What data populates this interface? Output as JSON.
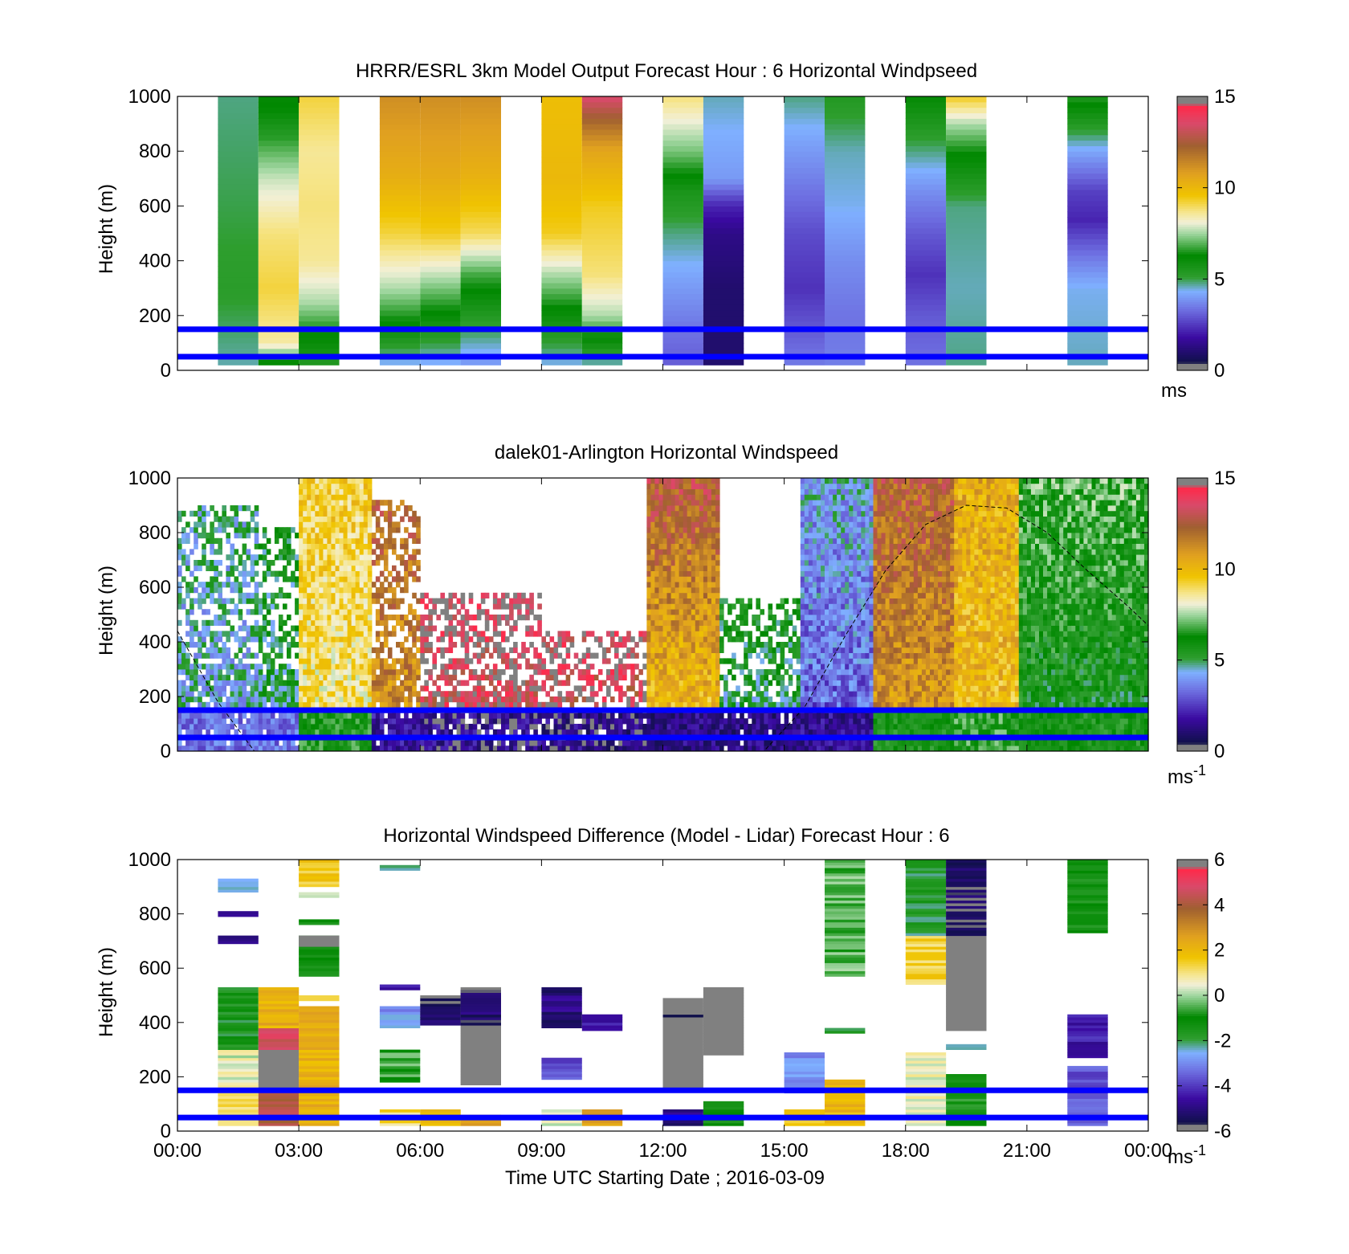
{
  "chart_data": [
    {
      "type": "heatmap",
      "title": "HRRR/ESRL 3km Model Output   Forecast Hour : 6 Horizontal Windpseed",
      "ylabel": "Height (m)",
      "ylim": [
        0,
        1000
      ],
      "yticks": [
        "0",
        "200",
        "400",
        "600",
        "800",
        "1000"
      ],
      "xlim": [
        0,
        24
      ],
      "xticks": [],
      "colorbar": {
        "min": 0,
        "max": 15,
        "ticks": [
          "0",
          "5",
          "10",
          "15"
        ],
        "unit": "ms",
        "unit_sup": ""
      },
      "reference_lines_m": [
        50,
        150
      ],
      "reference_line_color": "#0000ff",
      "columns": [
        {
          "t": 1.5,
          "profile": [
            [
              0,
              4.6
            ],
            [
              300,
              5.2
            ],
            [
              600,
              5.0
            ],
            [
              1000,
              4.8
            ]
          ]
        },
        {
          "t": 2.5,
          "profile": [
            [
              0,
              5.2
            ],
            [
              100,
              8.5
            ],
            [
              300,
              9.2
            ],
            [
              500,
              8.8
            ],
            [
              700,
              7.8
            ],
            [
              850,
              6.6
            ],
            [
              1000,
              6.2
            ]
          ]
        },
        {
          "t": 3.5,
          "profile": [
            [
              0,
              5.2
            ],
            [
              150,
              6.5
            ],
            [
              250,
              7.6
            ],
            [
              400,
              8.6
            ],
            [
              600,
              8.8
            ],
            [
              800,
              8.6
            ],
            [
              1000,
              9.2
            ]
          ]
        },
        {
          "t": 5.5,
          "profile": [
            [
              0,
              4.0
            ],
            [
              150,
              6.0
            ],
            [
              300,
              7.6
            ],
            [
              500,
              9.2
            ],
            [
              700,
              10.3
            ],
            [
              1000,
              11.2
            ]
          ]
        },
        {
          "t": 6.5,
          "profile": [
            [
              0,
              4.0
            ],
            [
              150,
              5.6
            ],
            [
              300,
              7.2
            ],
            [
              500,
              9.4
            ],
            [
              700,
              10.4
            ],
            [
              1000,
              11.2
            ]
          ]
        },
        {
          "t": 7.5,
          "profile": [
            [
              0,
              3.8
            ],
            [
              200,
              5.4
            ],
            [
              350,
              6.8
            ],
            [
              500,
              9.0
            ],
            [
              700,
              10.2
            ],
            [
              1000,
              11.2
            ]
          ]
        },
        {
          "t": 9.5,
          "profile": [
            [
              0,
              4.2
            ],
            [
              200,
              6.0
            ],
            [
              350,
              7.6
            ],
            [
              500,
              9.4
            ],
            [
              700,
              10.0
            ],
            [
              1000,
              9.8
            ]
          ]
        },
        {
          "t": 10.5,
          "profile": [
            [
              0,
              4.2
            ],
            [
              200,
              7.6
            ],
            [
              350,
              8.8
            ],
            [
              600,
              9.4
            ],
            [
              800,
              10.6
            ],
            [
              900,
              12.0
            ],
            [
              1000,
              13.6
            ]
          ]
        },
        {
          "t": 12.5,
          "profile": [
            [
              0,
              3.0
            ],
            [
              150,
              3.4
            ],
            [
              350,
              4.2
            ],
            [
              500,
              4.8
            ],
            [
              650,
              5.6
            ],
            [
              800,
              7.2
            ],
            [
              1000,
              8.8
            ]
          ]
        },
        {
          "t": 13.5,
          "profile": [
            [
              0,
              1.0
            ],
            [
              300,
              1.0
            ],
            [
              500,
              1.4
            ],
            [
              600,
              2.2
            ],
            [
              700,
              4.0
            ],
            [
              1000,
              4.6
            ]
          ]
        },
        {
          "t": 15.5,
          "profile": [
            [
              0,
              3.6
            ],
            [
              150,
              3.0
            ],
            [
              300,
              2.4
            ],
            [
              500,
              2.8
            ],
            [
              700,
              3.6
            ],
            [
              1000,
              4.8
            ]
          ]
        },
        {
          "t": 16.5,
          "profile": [
            [
              0,
              3.6
            ],
            [
              200,
              3.4
            ],
            [
              400,
              3.8
            ],
            [
              600,
              4.4
            ],
            [
              800,
              4.6
            ],
            [
              1000,
              5.4
            ]
          ]
        },
        {
          "t": 18.5,
          "profile": [
            [
              0,
              3.4
            ],
            [
              200,
              3.0
            ],
            [
              350,
              2.4
            ],
            [
              500,
              3.0
            ],
            [
              650,
              3.8
            ],
            [
              800,
              4.8
            ],
            [
              1000,
              6.2
            ]
          ]
        },
        {
          "t": 19.5,
          "profile": [
            [
              0,
              4.8
            ],
            [
              300,
              4.6
            ],
            [
              600,
              4.8
            ],
            [
              800,
              6.4
            ],
            [
              900,
              7.6
            ],
            [
              1000,
              9.4
            ]
          ]
        },
        {
          "t": 22.5,
          "profile": [
            [
              0,
              4.6
            ],
            [
              300,
              4.4
            ],
            [
              400,
              3.6
            ],
            [
              550,
              2.2
            ],
            [
              650,
              2.6
            ],
            [
              800,
              4.2
            ],
            [
              1000,
              6.6
            ]
          ]
        }
      ]
    },
    {
      "type": "heatmap",
      "title": "dalek01-Arlington  Horizontal Windspeed",
      "ylabel": "Height (m)",
      "ylim": [
        0,
        1000
      ],
      "yticks": [
        "0",
        "200",
        "400",
        "600",
        "800",
        "1000"
      ],
      "xlim": [
        0,
        24
      ],
      "xticks": [],
      "colorbar": {
        "min": 0,
        "max": 15,
        "ticks": [
          "0",
          "5",
          "10",
          "15"
        ],
        "unit": "ms",
        "unit_sup": "-1"
      },
      "reference_lines_m": [
        50,
        150
      ],
      "reference_line_color": "#0000ff",
      "boundary_layer_curve": [
        [
          0,
          440
        ],
        [
          1.0,
          180
        ],
        [
          1.9,
          0
        ],
        [
          14.5,
          0
        ],
        [
          15.5,
          160
        ],
        [
          16.5,
          420
        ],
        [
          17.5,
          660
        ],
        [
          18.5,
          830
        ],
        [
          19.5,
          900
        ],
        [
          20.5,
          890
        ],
        [
          21.5,
          800
        ],
        [
          22.5,
          660
        ],
        [
          23.5,
          530
        ],
        [
          24,
          460
        ]
      ],
      "segments": [
        {
          "t0": 0.0,
          "t1": 2.0,
          "zmax": 900,
          "base": 4.4,
          "low": 3.4,
          "up": 5.0
        },
        {
          "t0": 2.0,
          "t1": 3.0,
          "zmax": 820,
          "base": 4.8,
          "low": 3.4,
          "up": 6.2
        },
        {
          "t0": 3.0,
          "t1": 4.8,
          "zmax": 1000,
          "base": 8.6,
          "low": 6.4,
          "up": 9.8
        },
        {
          "t0": 4.8,
          "t1": 6.0,
          "zmax": 920,
          "base": 11.0,
          "low": 1.8,
          "up": 13.0
        },
        {
          "t0": 6.0,
          "t1": 9.0,
          "zmax": 580,
          "base": 13.2,
          "low": 1.6,
          "up": 15.0
        },
        {
          "t0": 9.0,
          "t1": 11.6,
          "zmax": 440,
          "base": 12.6,
          "low": 1.4,
          "up": 15.0
        },
        {
          "t0": 11.6,
          "t1": 13.4,
          "zmax": 1000,
          "base": 9.4,
          "low": 1.4,
          "up": 15.0
        },
        {
          "t0": 13.4,
          "t1": 15.4,
          "zmax": 560,
          "base": 4.6,
          "low": 1.4,
          "up": 6.8
        },
        {
          "t0": 15.4,
          "t1": 17.2,
          "zmax": 1000,
          "base": 3.0,
          "low": 1.6,
          "up": 5.2
        },
        {
          "t0": 17.2,
          "t1": 19.2,
          "zmax": 1000,
          "base": 10.8,
          "low": 6.0,
          "up": 13.5
        },
        {
          "t0": 19.2,
          "t1": 20.8,
          "zmax": 1000,
          "base": 9.8,
          "low": 6.6,
          "up": 10.8
        },
        {
          "t0": 20.8,
          "t1": 24.0,
          "zmax": 1000,
          "base": 5.4,
          "low": 6.0,
          "up": 8.0
        }
      ]
    },
    {
      "type": "heatmap",
      "title": "Horizontal Windspeed Difference (Model - Lidar) Forecast Hour : 6",
      "ylabel": "Height (m)",
      "xlabel": "Time UTC  Starting Date ; 2016-03-09",
      "ylim": [
        0,
        1000
      ],
      "yticks": [
        "0",
        "200",
        "400",
        "600",
        "800",
        "1000"
      ],
      "xlim": [
        0,
        24
      ],
      "xticks": [
        "00:00",
        "03:00",
        "06:00",
        "09:00",
        "12:00",
        "15:00",
        "18:00",
        "21:00",
        "00:00"
      ],
      "colorbar": {
        "min": -6,
        "max": 6,
        "ticks": [
          "-6",
          "-4",
          "-2",
          "0",
          "2",
          "4",
          "6"
        ],
        "unit": "ms",
        "unit_sup": "-1"
      },
      "reference_lines_m": [
        50,
        150
      ],
      "reference_line_color": "#0000ff",
      "blocks": [
        {
          "t0": 1.0,
          "t1": 2.0,
          "z0": 20,
          "z1": 160,
          "v": 1.4
        },
        {
          "t0": 1.0,
          "t1": 2.0,
          "z0": 160,
          "z1": 300,
          "v": 0.4
        },
        {
          "t0": 1.0,
          "t1": 2.0,
          "z0": 300,
          "z1": 530,
          "v": -1.6
        },
        {
          "t0": 1.0,
          "t1": 2.0,
          "z0": 880,
          "z1": 930,
          "v": -2.6
        },
        {
          "t0": 1.0,
          "t1": 2.0,
          "z0": 690,
          "z1": 720,
          "v": -5.0
        },
        {
          "t0": 1.0,
          "t1": 2.0,
          "z0": 790,
          "z1": 810,
          "v": -5.0
        },
        {
          "t0": 2.0,
          "t1": 3.0,
          "z0": 20,
          "z1": 160,
          "v": 4.2
        },
        {
          "t0": 2.0,
          "t1": 3.0,
          "z0": 160,
          "z1": 300,
          "v": 9.0
        },
        {
          "t0": 2.0,
          "t1": 3.0,
          "z0": 300,
          "z1": 380,
          "v": 4.6
        },
        {
          "t0": 2.0,
          "t1": 3.0,
          "z0": 380,
          "z1": 530,
          "v": 2.2
        },
        {
          "t0": 3.0,
          "t1": 4.0,
          "z0": 20,
          "z1": 460,
          "v": 2.2
        },
        {
          "t0": 3.0,
          "t1": 4.0,
          "z0": 480,
          "z1": 500,
          "v": 1.4
        },
        {
          "t0": 3.0,
          "t1": 4.0,
          "z0": 570,
          "z1": 720,
          "v": -1.2
        },
        {
          "t0": 3.0,
          "t1": 4.0,
          "z0": 680,
          "z1": 720,
          "v": 9.0
        },
        {
          "t0": 3.0,
          "t1": 4.0,
          "z0": 760,
          "z1": 780,
          "v": -0.8
        },
        {
          "t0": 3.0,
          "t1": 4.0,
          "z0": 860,
          "z1": 880,
          "v": 0.2
        },
        {
          "t0": 3.0,
          "t1": 4.0,
          "z0": 900,
          "z1": 1000,
          "v": 1.6
        },
        {
          "t0": 5.0,
          "t1": 6.0,
          "z0": 520,
          "z1": 540,
          "v": -4.6
        },
        {
          "t0": 5.0,
          "t1": 6.0,
          "z0": 380,
          "z1": 460,
          "v": -2.8
        },
        {
          "t0": 5.0,
          "t1": 6.0,
          "z0": 180,
          "z1": 300,
          "v": -0.6
        },
        {
          "t0": 5.0,
          "t1": 6.0,
          "z0": 20,
          "z1": 80,
          "v": 1.2
        },
        {
          "t0": 5.0,
          "t1": 6.0,
          "z0": 960,
          "z1": 980,
          "v": -2.0
        },
        {
          "t0": 6.0,
          "t1": 7.0,
          "z0": 390,
          "z1": 500,
          "v": -5.4
        },
        {
          "t0": 6.0,
          "t1": 7.0,
          "z0": 20,
          "z1": 80,
          "v": 2.2
        },
        {
          "t0": 7.0,
          "t1": 8.0,
          "z0": 170,
          "z1": 530,
          "v": 9.0
        },
        {
          "t0": 7.0,
          "t1": 8.0,
          "z0": 390,
          "z1": 520,
          "v": -5.2
        },
        {
          "t0": 7.0,
          "t1": 8.0,
          "z0": 20,
          "z1": 60,
          "v": 2.4
        },
        {
          "t0": 9.0,
          "t1": 10.0,
          "z0": 380,
          "z1": 530,
          "v": -5.0
        },
        {
          "t0": 9.0,
          "t1": 10.0,
          "z0": 190,
          "z1": 270,
          "v": -3.6
        },
        {
          "t0": 9.0,
          "t1": 10.0,
          "z0": 20,
          "z1": 80,
          "v": 0.2
        },
        {
          "t0": 10.0,
          "t1": 11.0,
          "z0": 370,
          "z1": 430,
          "v": -4.4
        },
        {
          "t0": 10.0,
          "t1": 11.0,
          "z0": 20,
          "z1": 80,
          "v": 2.4
        },
        {
          "t0": 12.0,
          "t1": 13.0,
          "z0": 160,
          "z1": 490,
          "v": 9.0
        },
        {
          "t0": 12.0,
          "t1": 13.0,
          "z0": 420,
          "z1": 440,
          "v": -5.6
        },
        {
          "t0": 12.0,
          "t1": 13.0,
          "z0": 20,
          "z1": 80,
          "v": -5.0
        },
        {
          "t0": 13.0,
          "t1": 14.0,
          "z0": 280,
          "z1": 530,
          "v": 9.0
        },
        {
          "t0": 13.0,
          "t1": 14.0,
          "z0": 20,
          "z1": 110,
          "v": -1.2
        },
        {
          "t0": 15.0,
          "t1": 16.0,
          "z0": 140,
          "z1": 290,
          "v": -3.0
        },
        {
          "t0": 15.0,
          "t1": 16.0,
          "z0": 20,
          "z1": 80,
          "v": 1.6
        },
        {
          "t0": 16.0,
          "t1": 17.0,
          "z0": 20,
          "z1": 190,
          "v": 2.0
        },
        {
          "t0": 16.0,
          "t1": 17.0,
          "z0": 360,
          "z1": 380,
          "v": -2.0
        },
        {
          "t0": 16.0,
          "t1": 17.0,
          "z0": 570,
          "z1": 1000,
          "v": -0.4
        },
        {
          "t0": 18.0,
          "t1": 19.0,
          "z0": 20,
          "z1": 290,
          "v": 0.6
        },
        {
          "t0": 18.0,
          "t1": 19.0,
          "z0": 540,
          "z1": 720,
          "v": 1.4
        },
        {
          "t0": 18.0,
          "t1": 19.0,
          "z0": 720,
          "z1": 1000,
          "v": -1.8
        },
        {
          "t0": 19.0,
          "t1": 20.0,
          "z0": 20,
          "z1": 210,
          "v": -1.0
        },
        {
          "t0": 19.0,
          "t1": 20.0,
          "z0": 300,
          "z1": 320,
          "v": -2.6
        },
        {
          "t0": 19.0,
          "t1": 20.0,
          "z0": 370,
          "z1": 720,
          "v": 9.0
        },
        {
          "t0": 19.0,
          "t1": 20.0,
          "z0": 720,
          "z1": 1000,
          "v": -5.4
        },
        {
          "t0": 22.0,
          "t1": 23.0,
          "z0": 20,
          "z1": 240,
          "v": -3.6
        },
        {
          "t0": 22.0,
          "t1": 23.0,
          "z0": 270,
          "z1": 430,
          "v": -4.4
        },
        {
          "t0": 22.0,
          "t1": 23.0,
          "z0": 730,
          "z1": 1000,
          "v": -1.2
        }
      ]
    }
  ],
  "colormap_stops": [
    {
      "p": 0.0,
      "c": "#808080"
    },
    {
      "p": 0.025,
      "c": "#808080"
    },
    {
      "p": 0.03,
      "c": "#10104a"
    },
    {
      "p": 0.12,
      "c": "#3a0aa0"
    },
    {
      "p": 0.22,
      "c": "#6d6de0"
    },
    {
      "p": 0.29,
      "c": "#7fb0ff"
    },
    {
      "p": 0.34,
      "c": "#2e9e2e"
    },
    {
      "p": 0.42,
      "c": "#008800"
    },
    {
      "p": 0.5,
      "c": "#9fd69f"
    },
    {
      "p": 0.54,
      "c": "#f2f0d8"
    },
    {
      "p": 0.58,
      "c": "#f6e58a"
    },
    {
      "p": 0.64,
      "c": "#f0c400"
    },
    {
      "p": 0.72,
      "c": "#e0a020"
    },
    {
      "p": 0.82,
      "c": "#a06030"
    },
    {
      "p": 0.9,
      "c": "#d84a6a"
    },
    {
      "p": 0.965,
      "c": "#ff2a4a"
    },
    {
      "p": 0.975,
      "c": "#808080"
    },
    {
      "p": 1.0,
      "c": "#808080"
    }
  ]
}
